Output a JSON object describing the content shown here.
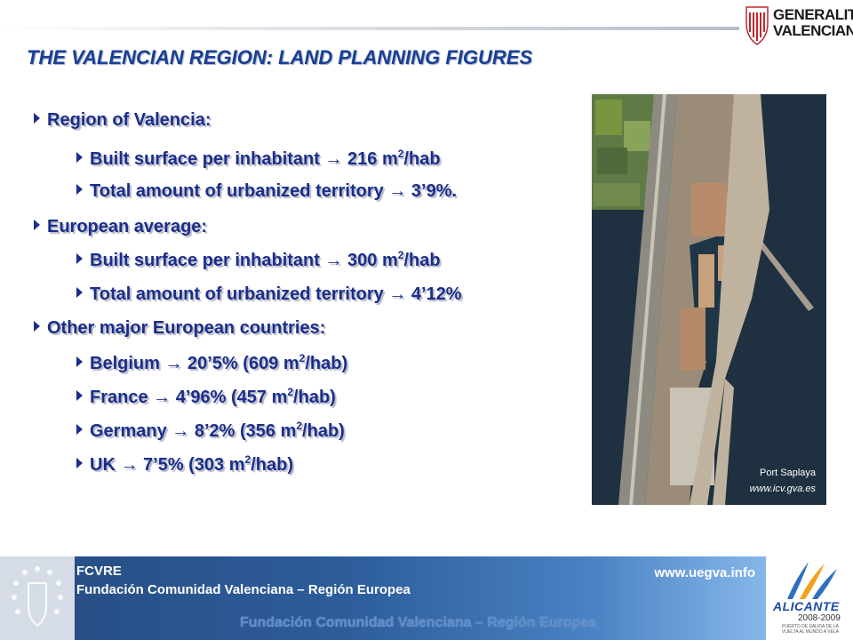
{
  "header": {
    "title": "THE VALENCIAN REGION: LAND PLANNING FIGURES",
    "logo": {
      "line1": "GENERALITAT",
      "line2": "VALENCIANA",
      "icon": "senyera-emblem-icon"
    }
  },
  "bullets": [
    {
      "level": 1,
      "text": "Region of Valencia:"
    },
    {
      "level": 2,
      "pre": "Built surface per inhabitant",
      "post": " 216 m",
      "sup": "2",
      "tail": "/hab"
    },
    {
      "level": 2,
      "pre": "Total amount of urbanized territory",
      "post": " 3’9%.",
      "sup": "",
      "tail": ""
    },
    {
      "level": 1,
      "text": "European average:"
    },
    {
      "level": 2,
      "pre": "Built surface per inhabitant",
      "post": " 300 m",
      "sup": "2",
      "tail": "/hab"
    },
    {
      "level": 2,
      "pre": "Total amount of urbanized territory",
      "post": " 4’12%",
      "sup": "",
      "tail": ""
    },
    {
      "level": 1,
      "text": "Other major European countries:"
    },
    {
      "level": 2,
      "pre": "Belgium",
      "post": " 20’5% (609 m",
      "sup": "2",
      "tail": "/hab)"
    },
    {
      "level": 2,
      "pre": "France",
      "post": " 4’96% (457 m",
      "sup": "2",
      "tail": "/hab)"
    },
    {
      "level": 2,
      "pre": "Germany",
      "post": " 8’2% (356 m",
      "sup": "2",
      "tail": "/hab)"
    },
    {
      "level": 2,
      "pre": "UK",
      "post": " 7’5% (303 m",
      "sup": "2",
      "tail": "/hab)"
    }
  ],
  "arrow_glyph": "→",
  "photo": {
    "caption": "Port Saplaya",
    "source": "www.icv.gva.es"
  },
  "footer": {
    "org_short": "FCVRE",
    "org_full": "Fundación Comunidad Valenciana – Región Europea",
    "url": "www.uegva.info",
    "ghost_text": "Fundación Comunidad Valenciana – Región Europea"
  },
  "alicante": {
    "name": "ALICANTE",
    "years": "2008-2009",
    "sub1": "PUERTO DE SALIDA DE LA",
    "sub2": "VUELTA AL MUNDO A VELA"
  },
  "colors": {
    "title": "#1a3f95",
    "bullet_text": "#1a2e8a",
    "footer_blue": "#2d5d9b",
    "sea": "#1f3140"
  }
}
